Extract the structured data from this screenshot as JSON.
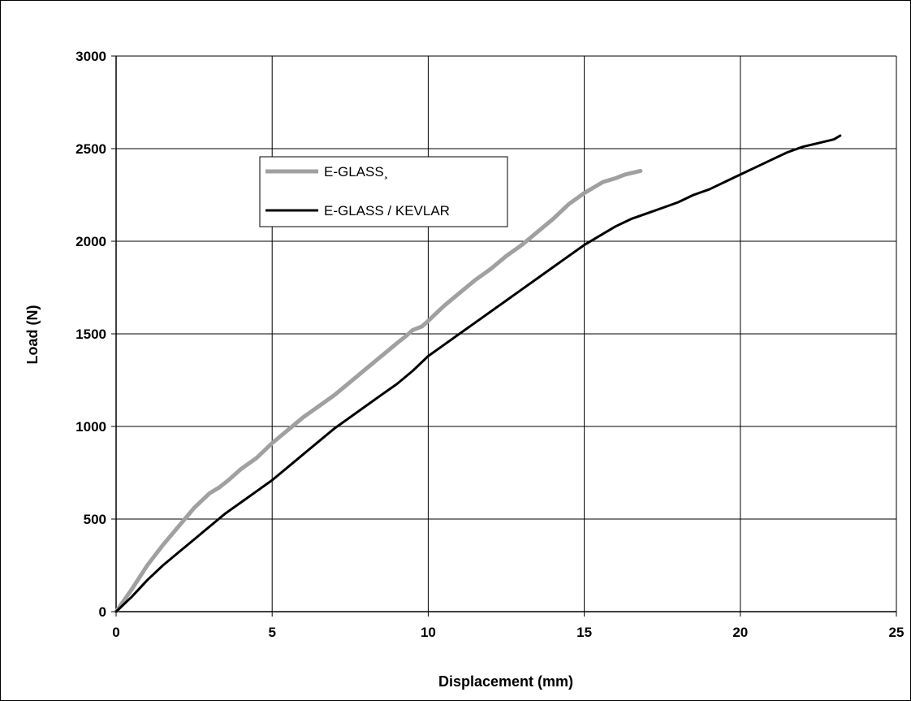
{
  "chart_data": {
    "type": "line",
    "title": "",
    "xlabel": "Displacement (mm)",
    "ylabel": "Load (N)",
    "xlim": [
      0,
      25
    ],
    "ylim": [
      0,
      3000
    ],
    "xticks": [
      "0",
      "5",
      "10",
      "15",
      "20",
      "25"
    ],
    "yticks": [
      "0",
      "500",
      "1000",
      "1500",
      "2000",
      "2500",
      "3000"
    ],
    "grid": true,
    "legend_position": "top-left",
    "series": [
      {
        "name": "E-GLASS¸",
        "color": "#a0a0a0",
        "x": [
          0,
          0.5,
          1,
          1.5,
          2,
          2.5,
          3,
          3.3,
          3.6,
          4,
          4.5,
          5,
          5.5,
          6,
          6.5,
          7,
          7.5,
          8,
          8.5,
          9,
          9.3,
          9.5,
          9.8,
          10,
          10.5,
          11,
          11.5,
          12,
          12.5,
          13,
          13.5,
          14,
          14.5,
          15,
          15.3,
          15.6,
          16,
          16.3,
          16.8
        ],
        "y": [
          0,
          120,
          250,
          360,
          460,
          560,
          640,
          670,
          710,
          770,
          830,
          910,
          980,
          1050,
          1110,
          1170,
          1240,
          1310,
          1380,
          1450,
          1490,
          1520,
          1540,
          1570,
          1650,
          1720,
          1790,
          1850,
          1920,
          1980,
          2050,
          2120,
          2200,
          2260,
          2290,
          2320,
          2340,
          2360,
          2380
        ]
      },
      {
        "name": "E-GLASS / KEVLAR",
        "color": "#000000",
        "x": [
          0,
          0.5,
          1,
          1.5,
          2,
          2.5,
          3,
          3.5,
          4,
          4.5,
          5,
          5.5,
          6,
          6.5,
          7,
          7.5,
          8,
          8.5,
          9,
          9.5,
          10,
          10.5,
          11,
          11.5,
          12,
          12.5,
          13,
          13.5,
          14,
          14.5,
          15,
          15.5,
          16,
          16.5,
          17,
          17.5,
          18,
          18.5,
          19,
          19.5,
          20,
          20.5,
          21,
          21.5,
          22,
          22.5,
          23,
          23.2
        ],
        "y": [
          0,
          80,
          170,
          250,
          320,
          390,
          460,
          530,
          590,
          650,
          710,
          780,
          850,
          920,
          990,
          1050,
          1110,
          1170,
          1230,
          1300,
          1380,
          1440,
          1500,
          1560,
          1620,
          1680,
          1740,
          1800,
          1860,
          1920,
          1980,
          2030,
          2080,
          2120,
          2150,
          2180,
          2210,
          2250,
          2280,
          2320,
          2360,
          2400,
          2440,
          2480,
          2510,
          2530,
          2550,
          2570
        ]
      }
    ]
  }
}
